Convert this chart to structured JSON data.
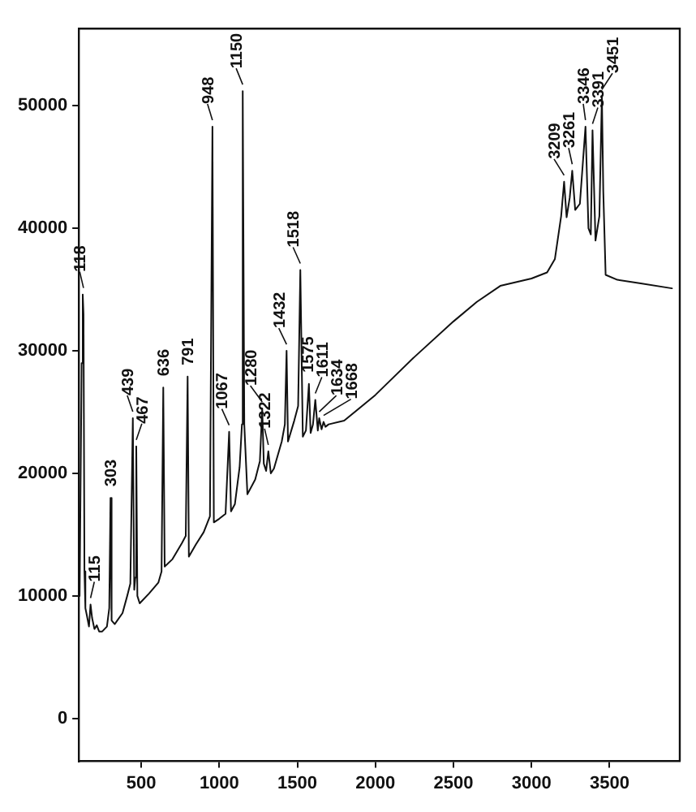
{
  "chart_data": {
    "type": "line",
    "xlim": [
      100,
      3950
    ],
    "xticks": [
      500,
      1000,
      1500,
      2000,
      2500,
      3000,
      3500
    ],
    "ylim": [
      -3500,
      56300
    ],
    "yticks": [
      0,
      10000,
      20000,
      30000,
      40000,
      50000
    ],
    "grid": false,
    "legend": false,
    "marker": "none",
    "line_style": "solid",
    "series": [
      {
        "color": "#111111",
        "x": [
          105,
          118,
          125,
          130,
          136,
          142,
          150,
          165,
          175,
          185,
          200,
          215,
          230,
          250,
          280,
          295,
          303,
          310,
          330,
          380,
          410,
          430,
          446,
          455,
          462,
          468,
          475,
          490,
          550,
          610,
          630,
          641,
          650,
          700,
          760,
          785,
          797,
          805,
          850,
          900,
          940,
          956,
          965,
          1000,
          1040,
          1063,
          1075,
          1100,
          1130,
          1145,
          1150,
          1160,
          1180,
          1230,
          1260,
          1275,
          1285,
          1300,
          1314,
          1330,
          1350,
          1400,
          1420,
          1431,
          1440,
          1480,
          1505,
          1519,
          1535,
          1555,
          1574,
          1585,
          1600,
          1615,
          1631,
          1640,
          1655,
          1668,
          1680,
          1700,
          1800,
          2000,
          2250,
          2500,
          2650,
          2800,
          3000,
          3100,
          3150,
          3190,
          3209,
          3225,
          3245,
          3261,
          3280,
          3310,
          3346,
          3365,
          3380,
          3391,
          3410,
          3435,
          3451,
          3460,
          3475,
          3550,
          3700,
          3900
        ],
        "values": [
          10000,
          29000,
          34600,
          33000,
          12000,
          9000,
          8500,
          7500,
          9300,
          8200,
          7300,
          7600,
          7100,
          7100,
          7500,
          9000,
          18000,
          8000,
          7700,
          8600,
          10000,
          11000,
          24500,
          10500,
          11500,
          22200,
          10000,
          9400,
          10200,
          11100,
          12000,
          27000,
          12400,
          13000,
          14300,
          14900,
          27900,
          13200,
          14200,
          15200,
          16500,
          48300,
          16000,
          16300,
          16700,
          23400,
          16900,
          17500,
          20500,
          24000,
          51200,
          24000,
          18300,
          19500,
          21000,
          25300,
          20800,
          20200,
          21800,
          20000,
          20400,
          22600,
          24000,
          30000,
          22600,
          24300,
          25500,
          36600,
          23000,
          23500,
          27300,
          23300,
          24000,
          26000,
          23500,
          24500,
          23600,
          24200,
          23800,
          24000,
          24300,
          26400,
          29500,
          32400,
          34000,
          35300,
          35900,
          36400,
          37500,
          41000,
          43800,
          40900,
          42500,
          44700,
          41500,
          42000,
          48300,
          40000,
          39500,
          48000,
          39000,
          41000,
          50800,
          43000,
          36200,
          35800,
          35500,
          35100
        ]
      }
    ],
    "annotations": [
      {
        "text": "118",
        "x": 130,
        "y": 34600
      },
      {
        "text": "115",
        "x": 175,
        "y": 9300
      },
      {
        "text": "303",
        "x": 303,
        "y": 18000
      },
      {
        "text": "439",
        "x": 446,
        "y": 24500
      },
      {
        "text": "467",
        "x": 468,
        "y": 22200
      },
      {
        "text": "636",
        "x": 641,
        "y": 27000
      },
      {
        "text": "791",
        "x": 797,
        "y": 27900
      },
      {
        "text": "948",
        "x": 956,
        "y": 48300
      },
      {
        "text": "1067",
        "x": 1063,
        "y": 23400
      },
      {
        "text": "1150",
        "x": 1150,
        "y": 51200
      },
      {
        "text": "1280",
        "x": 1275,
        "y": 25300
      },
      {
        "text": "1322",
        "x": 1314,
        "y": 21800
      },
      {
        "text": "1432",
        "x": 1431,
        "y": 30000
      },
      {
        "text": "1518",
        "x": 1519,
        "y": 36600
      },
      {
        "text": "1575",
        "x": 1574,
        "y": 27300
      },
      {
        "text": "1611",
        "x": 1615,
        "y": 26000
      },
      {
        "text": "1634",
        "x": 1640,
        "y": 24500
      },
      {
        "text": "1668",
        "x": 1668,
        "y": 24200
      },
      {
        "text": "3209",
        "x": 3209,
        "y": 43800
      },
      {
        "text": "3261",
        "x": 3261,
        "y": 44700
      },
      {
        "text": "3346",
        "x": 3346,
        "y": 48300
      },
      {
        "text": "3391",
        "x": 3391,
        "y": 48000
      },
      {
        "text": "3451",
        "x": 3451,
        "y": 50800
      }
    ]
  }
}
